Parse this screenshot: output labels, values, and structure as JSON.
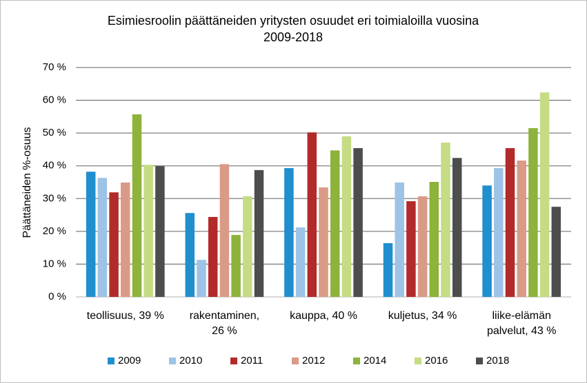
{
  "chart_data": {
    "type": "bar",
    "title": "Esimiesroolin päättäneiden yritysten osuudet eri toimialoilla vuosina\n2009-2018",
    "y_label": "Päättäneiden %-osuus",
    "categories": [
      "teollisuus, 39 %",
      "rakentaminen,\n26 %",
      "kauppa, 40 %",
      "kuljetus, 34 %",
      "liike-elämän\npalvelut, 43 %"
    ],
    "series": [
      {
        "name": "2009",
        "color": "#1f8fce",
        "values": [
          38.2,
          25.6,
          39.3,
          16.4,
          34.0
        ]
      },
      {
        "name": "2010",
        "color": "#9dc3e6",
        "values": [
          36.3,
          11.3,
          21.2,
          34.9,
          39.3
        ]
      },
      {
        "name": "2011",
        "color": "#b22a2a",
        "values": [
          31.9,
          24.4,
          50.2,
          29.2,
          45.4
        ]
      },
      {
        "name": "2012",
        "color": "#d99b87",
        "values": [
          34.9,
          40.5,
          33.4,
          30.7,
          41.6
        ]
      },
      {
        "name": "2014",
        "color": "#8db33a",
        "values": [
          55.7,
          18.9,
          44.7,
          35.1,
          51.5
        ]
      },
      {
        "name": "2016",
        "color": "#c5dc84",
        "values": [
          40.3,
          30.7,
          49.0,
          47.1,
          62.4
        ]
      },
      {
        "name": "2018",
        "color": "#4d4d4d",
        "values": [
          39.9,
          38.7,
          45.4,
          42.4,
          27.5
        ]
      }
    ],
    "ylim": [
      0,
      70
    ],
    "yticks": [
      {
        "value": 0,
        "label": "0 %"
      },
      {
        "value": 10,
        "label": "10 %"
      },
      {
        "value": 20,
        "label": "20 %"
      },
      {
        "value": 30,
        "label": "30 %"
      },
      {
        "value": 40,
        "label": "40 %"
      },
      {
        "value": 50,
        "label": "50 %"
      },
      {
        "value": 60,
        "label": "60 %"
      },
      {
        "value": 70,
        "label": "70 %"
      }
    ],
    "grid": true,
    "legend": "bottom"
  }
}
